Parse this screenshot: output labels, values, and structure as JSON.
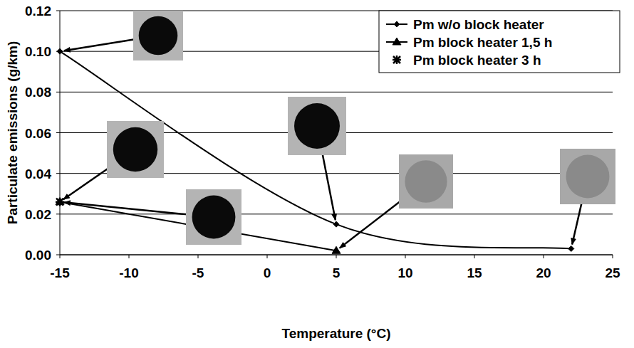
{
  "chart_data": {
    "type": "line",
    "x_label": "Temperature (°C)",
    "y_label": "Particulate emissions (g/km)",
    "xlim": [
      -15,
      25
    ],
    "xticks": [
      -15,
      -10,
      -5,
      0,
      5,
      10,
      15,
      20,
      25
    ],
    "ylim": [
      0,
      0.12
    ],
    "yticks": [
      {
        "value": 0,
        "label": "0.00"
      },
      {
        "value": 0.02,
        "label": "0.02"
      },
      {
        "value": 0.04,
        "label": "0.04"
      },
      {
        "value": 0.06,
        "label": "0.06"
      },
      {
        "value": 0.08,
        "label": "0.08"
      },
      {
        "value": 0.1,
        "label": "0.10"
      },
      {
        "value": 0.12,
        "label": "0.12"
      }
    ],
    "grid": true,
    "legend": "upper right",
    "series": [
      {
        "name": "Pm w/o block heater",
        "color": "#000000",
        "marker": "diamond",
        "line_style": "smooth",
        "x": [
          -15,
          5,
          22
        ],
        "values": [
          0.1,
          0.015,
          0.003
        ]
      },
      {
        "name": "Pm block heater 1,5 h",
        "color": "#000000",
        "marker": "triangle",
        "line_style": "solid",
        "x": [
          -15,
          5
        ],
        "values": [
          0.026,
          0.002
        ]
      },
      {
        "name": "Pm block heater 3 h",
        "color": "#000000",
        "marker": "x",
        "line_style": "none",
        "x": [
          -15
        ],
        "values": [
          0.026
        ]
      }
    ]
  }
}
